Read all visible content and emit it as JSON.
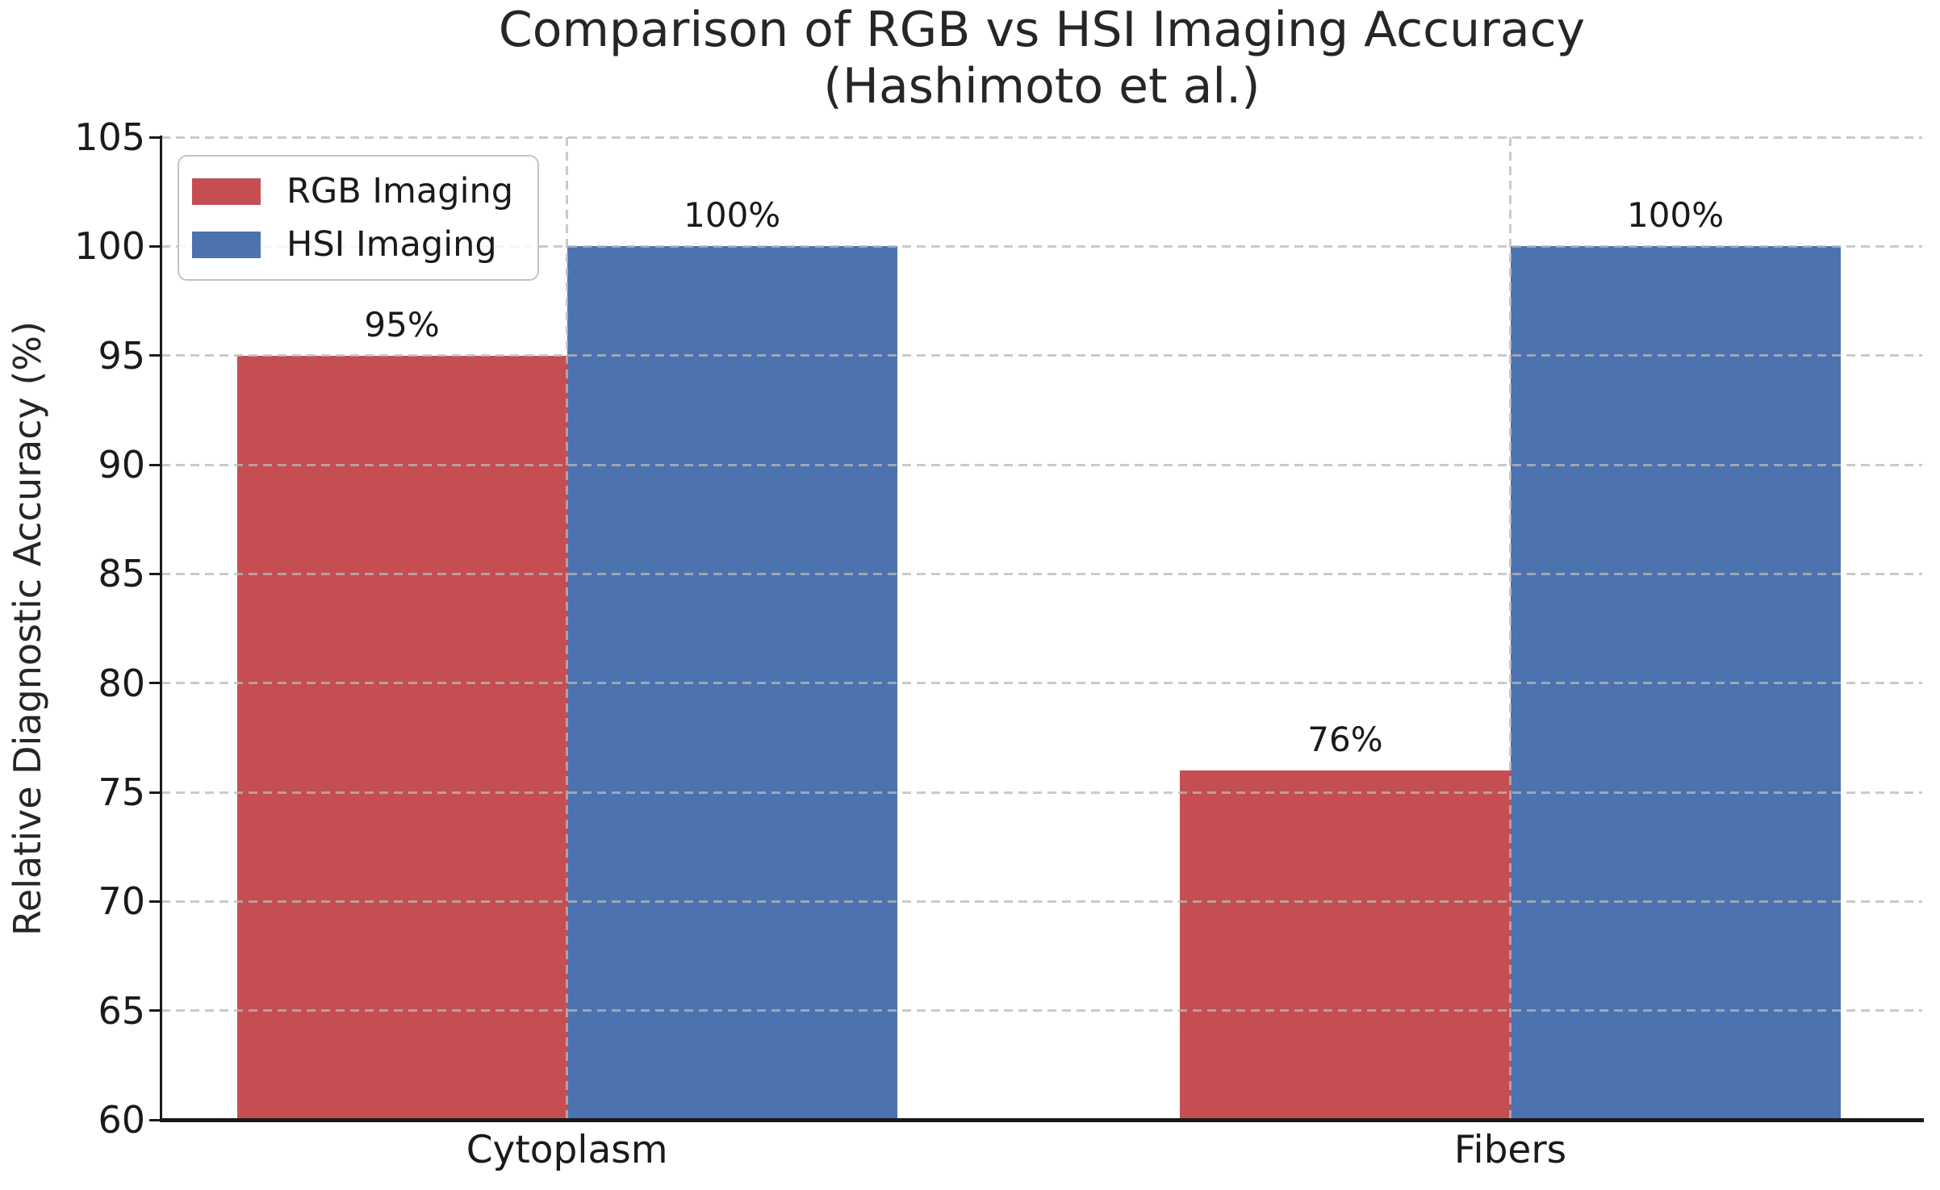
{
  "chart_data": {
    "type": "bar",
    "title": "Comparison of RGB vs HSI Imaging Accuracy",
    "subtitle": "(Hashimoto et al.)",
    "categories": [
      "Cytoplasm",
      "Fibers"
    ],
    "series": [
      {
        "name": "RGB Imaging",
        "color": "#c44e52",
        "values": [
          95,
          76
        ],
        "data_labels": [
          "95%",
          "76%"
        ]
      },
      {
        "name": "HSI Imaging",
        "color": "#4c72b0",
        "values": [
          100,
          100
        ],
        "data_labels": [
          "100%",
          "100%"
        ]
      }
    ],
    "xlabel": "",
    "ylabel": "Relative Diagnostic Accuracy (%)",
    "ylim": [
      60,
      105
    ],
    "yticks": [
      60,
      65,
      70,
      75,
      80,
      85,
      90,
      95,
      100,
      105
    ],
    "grid": true,
    "grid_style": "dashed",
    "legend_position": "upper left",
    "bar_width_data_units": 0.35,
    "x_axis_range": [
      -0.43,
      1.4367
    ],
    "colors": {
      "axis": "#1a1a1a",
      "grid": "#b9b9b9",
      "text": "#262626",
      "background": "#ffffff"
    }
  }
}
